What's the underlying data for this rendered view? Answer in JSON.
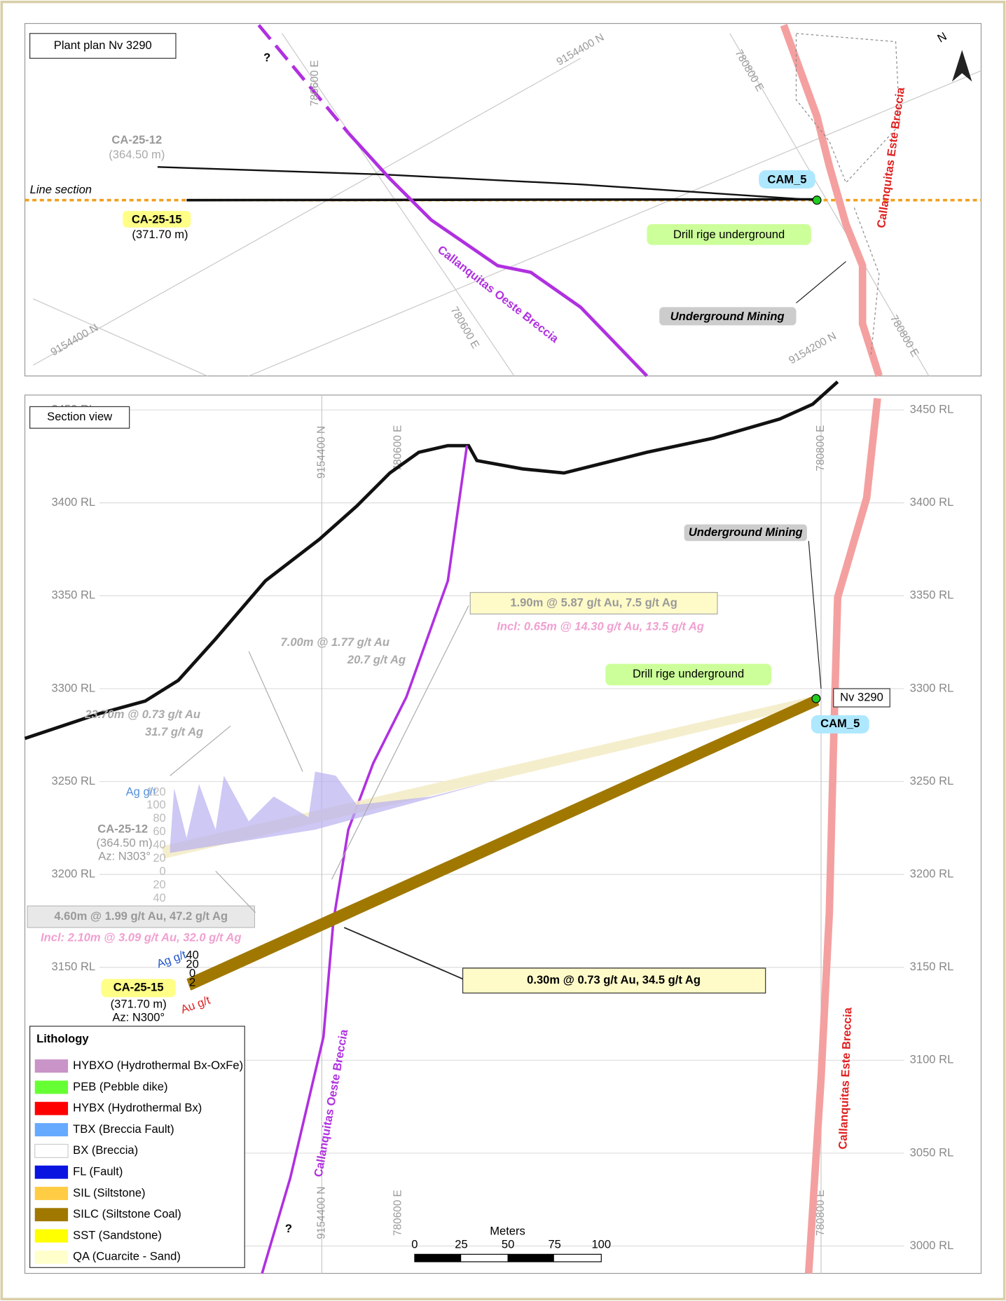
{
  "plan": {
    "title": "Plant plan Nv 3290",
    "question_mark": "?",
    "grid_labels": [
      "780600 E",
      "9154400 N",
      "780800 E",
      "9154400 N",
      "780600 E",
      "9154200 N",
      "780800 E"
    ],
    "north": "N",
    "line_section": "Line section",
    "hole_12": {
      "name": "CA-25-12",
      "depth": "(364.50 m)"
    },
    "hole_15": {
      "name": "CA-25-15",
      "depth": "(371.70 m)"
    },
    "cam": "CAM_5",
    "drill_rig": "Drill rige underground",
    "oeste": "Callanquitas Oeste Breccia",
    "este": "Callanquitas Este Breccia",
    "mining": "Underground Mining"
  },
  "section": {
    "title": "Section view",
    "rl_labels": [
      "3450 RL",
      "3400 RL",
      "3350 RL",
      "3300 RL",
      "3250 RL",
      "3200 RL",
      "3150 RL",
      "3100 RL",
      "3050 RL",
      "3000 RL"
    ],
    "grid_labels": [
      "9154400 N",
      "780600 E",
      "780800 E",
      "9154400 N",
      "780600 E",
      "780800 E"
    ],
    "mining": "Underground Mining",
    "intercept_1": "1.90m @ 5.87 g/t Au, 7.5 g/t Ag",
    "incl_1": "Incl: 0.65m @ 14.30 g/t Au, 13.5 g/t Ag",
    "intercept_2": [
      "7.00m @ 1.77 g/t Au",
      "20.7 g/t Ag"
    ],
    "intercept_3": [
      "23.70m @ 0.73 g/t Au",
      "31.7 g/t Ag"
    ],
    "intercept_4": "4.60m @ 1.99 g/t Au, 47.2 g/t Ag",
    "incl_4": "Incl: 2.10m @ 3.09 g/t Au, 32.0 g/t Ag",
    "intercept_5": "0.30m @ 0.73 g/t Au, 34.5 g/t Ag",
    "drill_rig": "Drill rige underground",
    "level": "Nv 3290",
    "cam": "CAM_5",
    "hole_12": {
      "name": "CA-25-12",
      "depth": "(364.50 m)",
      "azimuth": "Az: N303°"
    },
    "hole_15": {
      "name": "CA-25-15",
      "depth": "(371.70 m)",
      "azimuth": "Az: N300°"
    },
    "ag_axis": "Ag g/t",
    "au_axis": "Au g/t",
    "hist_12_ticks": [
      "120",
      "100",
      "80",
      "60",
      "40",
      "20",
      "0",
      "20",
      "40"
    ],
    "hist_15_ticks": [
      "40",
      "20",
      "0",
      "2"
    ],
    "oeste": "Callanquitas Oeste Breccia",
    "este": "Callanquitas Este Breccia",
    "question_mark": "?"
  },
  "legend": {
    "title": "Lithology",
    "items": [
      {
        "label": "HYBXO (Hydrothermal Bx-OxFe)",
        "color": "#c994c7"
      },
      {
        "label": "PEB (Pebble dike)",
        "color": "#66ff33"
      },
      {
        "label": "HYBX (Hydrothermal Bx)",
        "color": "#ff0000"
      },
      {
        "label": "TBX (Breccia Fault)",
        "color": "#66aaff"
      },
      {
        "label": "BX (Breccia)",
        "color": "#ffffff"
      },
      {
        "label": "FL (Fault)",
        "color": "#0a14e0"
      },
      {
        "label": "SIL (Siltstone)",
        "color": "#ffcc44"
      },
      {
        "label": "SILC (Siltstone Coal)",
        "color": "#a07800"
      },
      {
        "label": "SST (Sandstone)",
        "color": "#ffff00"
      },
      {
        "label": "QA (Cuarcite - Sand)",
        "color": "#ffffcc"
      }
    ]
  },
  "scale_bar": {
    "title": "Meters",
    "ticks": [
      "0",
      "25",
      "50",
      "75",
      "100"
    ]
  }
}
